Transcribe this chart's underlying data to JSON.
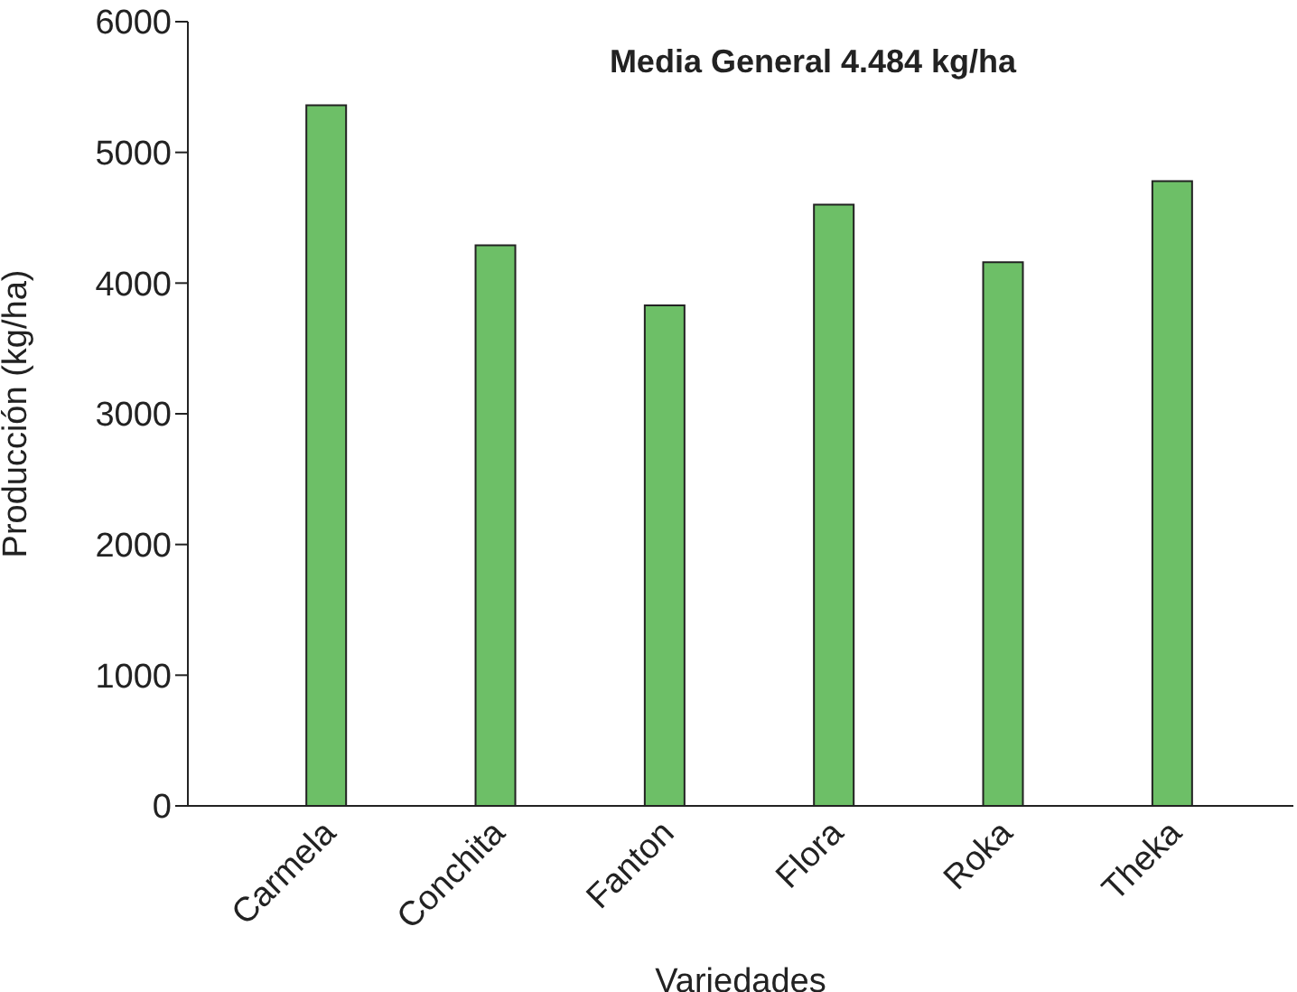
{
  "chart_data": {
    "type": "bar",
    "title": "Media General 4.484 kg/ha",
    "xlabel": "Variedades",
    "ylabel": "Producción (kg/ha)",
    "categories": [
      "Carmela",
      "Conchita",
      "Fanton",
      "Flora",
      "Roka",
      "Theka"
    ],
    "values": [
      5360,
      4290,
      3830,
      4600,
      4160,
      4780
    ],
    "color": "#6dbf67",
    "ylim": [
      0,
      6000
    ],
    "yticks": [
      0,
      1000,
      2000,
      3000,
      4000,
      5000,
      6000
    ],
    "grid": false,
    "legend": false
  }
}
